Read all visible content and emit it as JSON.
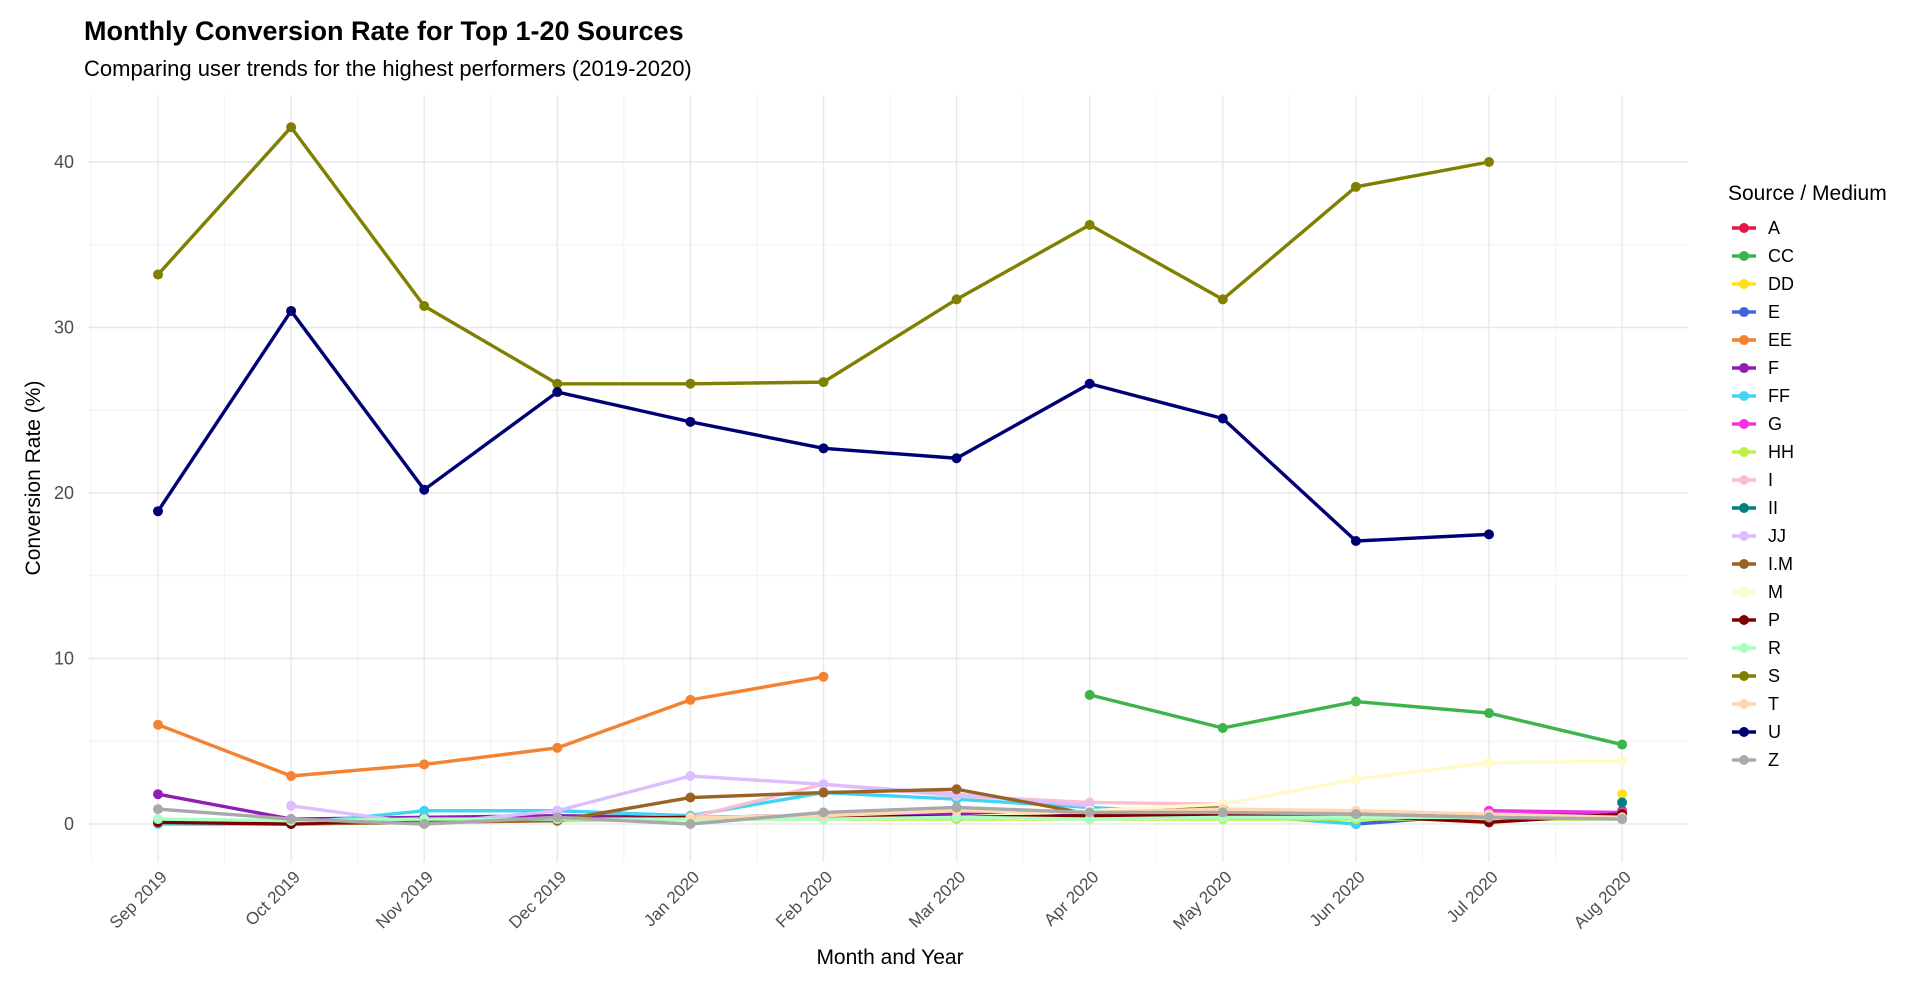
{
  "chart_data": {
    "type": "line",
    "title": "Monthly Conversion Rate for Top 1-20 Sources",
    "subtitle": "Comparing user trends for the highest performers (2019-2020)",
    "xlabel": "Month and Year",
    "ylabel": "Conversion Rate (%)",
    "categories": [
      "Sep 2019",
      "Oct 2019",
      "Nov 2019",
      "Dec 2019",
      "Jan 2020",
      "Feb 2020",
      "Mar 2020",
      "Apr 2020",
      "May 2020",
      "Jun 2020",
      "Jul 2020",
      "Aug 2020"
    ],
    "y_ticks": [
      0,
      10,
      20,
      30,
      40
    ],
    "ylim": [
      -2.3,
      44
    ],
    "grid": true,
    "legend_title": "Source / Medium",
    "legend_position": "right",
    "series": [
      {
        "name": "A",
        "color": "#E8174B",
        "values": [
          null,
          null,
          null,
          null,
          null,
          null,
          null,
          null,
          null,
          null,
          null,
          0.8
        ]
      },
      {
        "name": "CC",
        "color": "#3CB44B",
        "values": [
          null,
          null,
          null,
          null,
          null,
          null,
          null,
          7.8,
          5.8,
          7.4,
          6.7,
          4.8
        ]
      },
      {
        "name": "DD",
        "color": "#FFE119",
        "values": [
          null,
          null,
          null,
          null,
          null,
          null,
          null,
          null,
          null,
          null,
          null,
          1.8
        ]
      },
      {
        "name": "E",
        "color": "#4363D8",
        "values": [
          null,
          null,
          null,
          null,
          null,
          null,
          null,
          null,
          null,
          0.0,
          0.6,
          0.5
        ]
      },
      {
        "name": "EE",
        "color": "#F58231",
        "values": [
          6.0,
          2.9,
          3.6,
          4.6,
          7.5,
          8.9,
          null,
          null,
          null,
          null,
          null,
          null
        ]
      },
      {
        "name": "F",
        "color": "#911EB4",
        "values": [
          1.8,
          0.3,
          0.4,
          0.5,
          0.4,
          0.5,
          0.6,
          0.6,
          0.6,
          0.6,
          0.5,
          0.6
        ]
      },
      {
        "name": "FF",
        "color": "#42D4F4",
        "values": [
          0.0,
          0.0,
          0.8,
          0.8,
          0.5,
          1.9,
          1.5,
          1.0,
          0.6,
          0.0,
          null,
          null
        ]
      },
      {
        "name": "G",
        "color": "#F032E6",
        "values": [
          null,
          null,
          null,
          null,
          null,
          null,
          null,
          null,
          null,
          null,
          0.8,
          0.7
        ]
      },
      {
        "name": "HH",
        "color": "#BFEF45",
        "values": [
          0.1,
          0.1,
          0.2,
          0.2,
          0.3,
          0.3,
          0.3,
          0.3,
          0.3,
          0.3,
          0.3,
          0.3
        ]
      },
      {
        "name": "I",
        "color": "#FABED4",
        "values": [
          null,
          null,
          null,
          null,
          0.4,
          2.4,
          1.7,
          1.3,
          1.2,
          null,
          null,
          null
        ]
      },
      {
        "name": "II",
        "color": "#008080",
        "values": [
          null,
          null,
          null,
          null,
          null,
          null,
          null,
          null,
          null,
          null,
          null,
          1.3
        ]
      },
      {
        "name": "JJ",
        "color": "#DCBEFF",
        "values": [
          null,
          1.1,
          0.0,
          0.8,
          2.9,
          2.4,
          1.8,
          1.1,
          null,
          null,
          null,
          null
        ]
      },
      {
        "name": "I.M",
        "color": "#9A6324",
        "values": [
          0.2,
          0.0,
          0.1,
          0.2,
          1.6,
          1.9,
          2.1,
          0.6,
          1.0,
          null,
          null,
          null
        ]
      },
      {
        "name": "M",
        "color": "#FFFAC8",
        "values": [
          null,
          null,
          null,
          null,
          null,
          0.4,
          0.4,
          0.8,
          1.2,
          2.7,
          3.7,
          3.8
        ]
      },
      {
        "name": "P",
        "color": "#800000",
        "values": [
          0.1,
          0.0,
          0.3,
          0.3,
          0.4,
          0.5,
          0.4,
          0.5,
          0.5,
          0.5,
          0.1,
          0.6
        ]
      },
      {
        "name": "R",
        "color": "#AAFFC3",
        "values": [
          0.3,
          0.2,
          0.3,
          0.3,
          0.3,
          0.3,
          0.4,
          0.3,
          0.4,
          0.4,
          0.4,
          0.4
        ]
      },
      {
        "name": "S",
        "color": "#808000",
        "values": [
          33.2,
          42.1,
          31.3,
          26.6,
          26.6,
          26.7,
          31.7,
          36.2,
          31.7,
          38.5,
          40.0,
          null
        ]
      },
      {
        "name": "T",
        "color": "#FFD8B1",
        "values": [
          null,
          null,
          null,
          null,
          0.4,
          0.5,
          0.8,
          0.7,
          0.9,
          0.8,
          0.6,
          0.4
        ]
      },
      {
        "name": "U",
        "color": "#000075",
        "values": [
          18.9,
          31.0,
          20.2,
          26.1,
          24.3,
          22.7,
          22.1,
          26.6,
          24.5,
          17.1,
          17.5,
          null
        ]
      },
      {
        "name": "Z",
        "color": "#A9A9A9",
        "values": [
          0.9,
          0.3,
          0.0,
          0.4,
          0.0,
          0.7,
          1.0,
          0.7,
          0.7,
          0.6,
          0.4,
          0.3
        ]
      }
    ]
  }
}
